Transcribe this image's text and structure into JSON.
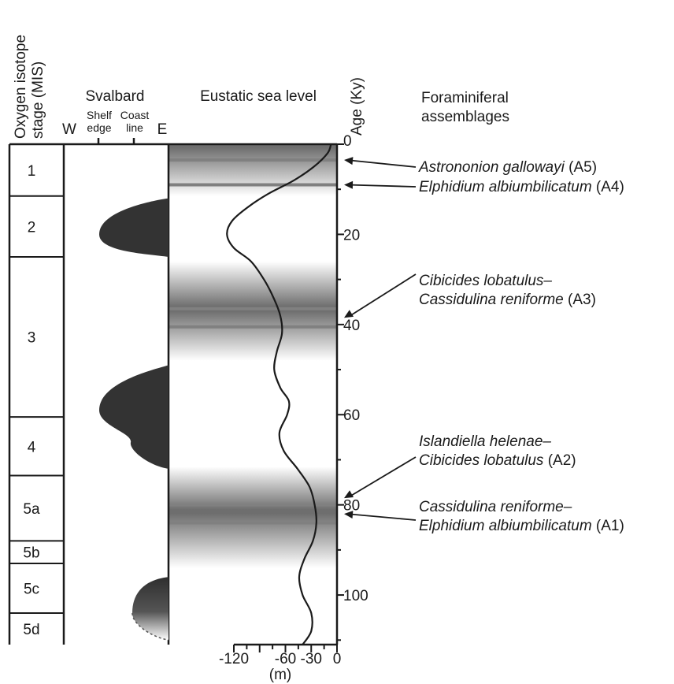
{
  "headers": {
    "mis_line1": "Oxygen isotope",
    "mis_line2": "stage (MIS)",
    "svalbard": "Svalbard",
    "west": "W",
    "east": "E",
    "shelf_line1": "Shelf",
    "shelf_line2": "edge",
    "coast_line1": "Coast",
    "coast_line2": "line",
    "sea_level": "Eustatic sea level",
    "age_axis": "Age (Ky)",
    "foram_line1": "Foraminiferal",
    "foram_line2": "assemblages"
  },
  "stages": [
    {
      "label": "1",
      "from": 0,
      "to": 11.5
    },
    {
      "label": "2",
      "from": 11.5,
      "to": 25
    },
    {
      "label": "3",
      "from": 25,
      "to": 60.5
    },
    {
      "label": "4",
      "from": 60.5,
      "to": 73.5
    },
    {
      "label": "5a",
      "from": 73.5,
      "to": 88
    },
    {
      "label": "5b",
      "from": 88,
      "to": 93
    },
    {
      "label": "5c",
      "from": 93,
      "to": 104
    },
    {
      "label": "5d",
      "from": 104,
      "to": 111
    }
  ],
  "age_axis": {
    "min": 0,
    "max": 111,
    "ticks": [
      {
        "value": 0,
        "label": "0"
      },
      {
        "value": 20,
        "label": "20"
      },
      {
        "value": 40,
        "label": "40"
      },
      {
        "value": 60,
        "label": "60"
      },
      {
        "value": 80,
        "label": "80"
      },
      {
        "value": 100,
        "label": "100"
      }
    ]
  },
  "sea_level_axis": {
    "min": -140,
    "max": 0,
    "unit": "(m)",
    "ticks": [
      {
        "value": -120,
        "label": "-120"
      },
      {
        "value": -60,
        "label": "-60"
      },
      {
        "value": -30,
        "label": "-30"
      },
      {
        "value": 0,
        "label": "0"
      }
    ]
  },
  "sea_level_curve": [
    [
      0,
      -7
    ],
    [
      2,
      -11
    ],
    [
      5,
      -27
    ],
    [
      8,
      -50
    ],
    [
      11,
      -80
    ],
    [
      14,
      -104
    ],
    [
      17,
      -122
    ],
    [
      20,
      -128
    ],
    [
      23,
      -120
    ],
    [
      26,
      -100
    ],
    [
      30,
      -85
    ],
    [
      34,
      -74
    ],
    [
      38,
      -66
    ],
    [
      42,
      -64
    ],
    [
      46,
      -70
    ],
    [
      50,
      -73
    ],
    [
      54,
      -66
    ],
    [
      57,
      -56
    ],
    [
      60,
      -58
    ],
    [
      64,
      -67
    ],
    [
      68,
      -62
    ],
    [
      72,
      -46
    ],
    [
      76,
      -32
    ],
    [
      80,
      -26
    ],
    [
      84,
      -24
    ],
    [
      88,
      -28
    ],
    [
      92,
      -38
    ],
    [
      96,
      -44
    ],
    [
      100,
      -40
    ],
    [
      104,
      -30
    ],
    [
      108,
      -30
    ],
    [
      111,
      -40
    ]
  ],
  "shading_zones": [
    {
      "from": 0,
      "to": 11.5,
      "dark_at": 0.5
    },
    {
      "from": 26,
      "to": 48,
      "dark_at": 36.5
    },
    {
      "from": 71.5,
      "to": 94,
      "dark_at": 81.5
    }
  ],
  "assemblage_lines": [
    3.5,
    9,
    36.5,
    40.5,
    80,
    84
  ],
  "assemblages": [
    {
      "id": "A5",
      "species": "Astrononion gallowayi",
      "code": "(A5)",
      "age": 3.5
    },
    {
      "id": "A4",
      "species": "Elphidium albiumbilicatum",
      "code": "(A4)",
      "age": 9
    },
    {
      "id": "A3",
      "species_line1": "Cibicides lobatulus–",
      "species_line2": "Cassidulina reniforme",
      "code": "(A3)",
      "age": 38.5
    },
    {
      "id": "A2",
      "species_line1": "Islandiella helenae–",
      "species_line2": "Cibicides lobatulus",
      "code": "(A2)",
      "age": 78.5
    },
    {
      "id": "A1",
      "species_line1": "Cassidulina reniforme–",
      "species_line2": "Elphidium albiumbilicatum",
      "code": "(A1)",
      "age": 82
    }
  ],
  "ice_extent": [
    {
      "from": 12,
      "peak": 20,
      "to": 25,
      "max_extent": "beyond shelf edge",
      "gradient": false
    },
    {
      "from": 49,
      "peak": 59,
      "to": 72,
      "max_extent": "beyond shelf edge",
      "gradient": false
    },
    {
      "from": 96,
      "peak": 104,
      "to": 110,
      "max_extent": "shelf",
      "gradient": true
    }
  ],
  "colors": {
    "ink": "#1a1a1a",
    "ice": "#333333",
    "band_dark": "#6e6e6e",
    "band_line": "#808080"
  }
}
